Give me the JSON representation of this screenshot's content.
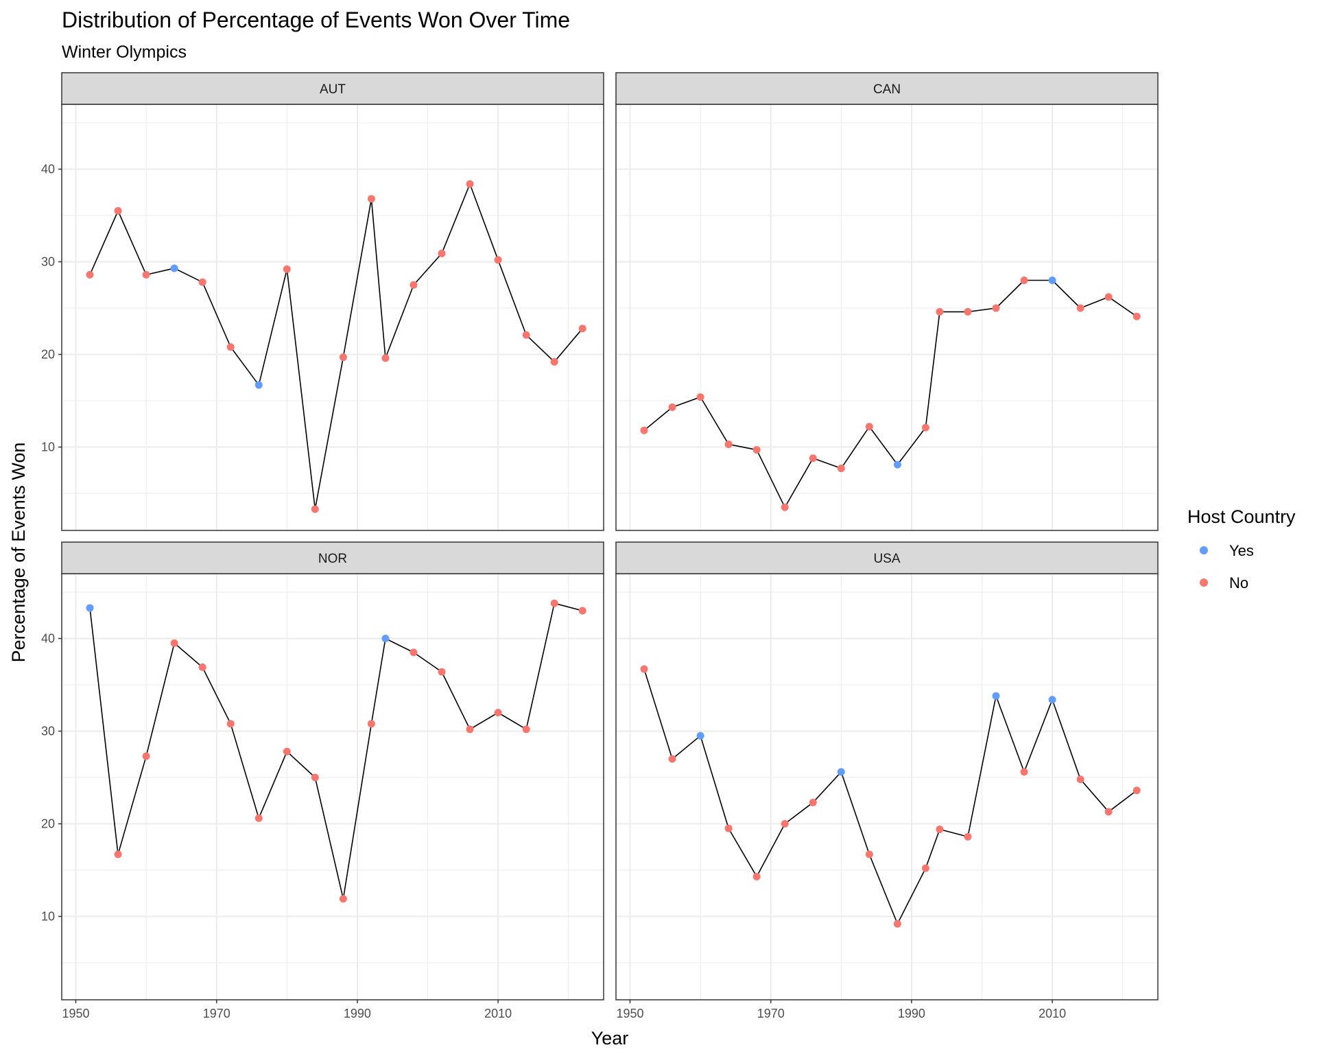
{
  "chart_data": {
    "type": "line",
    "title": "Distribution of Percentage of Events Won Over Time",
    "subtitle": "Winter Olympics",
    "xlabel": "Year",
    "ylabel": "Percentage of Events Won",
    "xlim": [
      1948,
      2025
    ],
    "ylim": [
      1,
      47
    ],
    "x_ticks": [
      1950,
      1970,
      1990,
      2010
    ],
    "y_ticks": [
      10,
      20,
      30,
      40
    ],
    "grid": true,
    "legend": {
      "title": "Host Country",
      "placement": "right",
      "entries": [
        {
          "label": "Yes",
          "color": "#619CFF"
        },
        {
          "label": "No",
          "color": "#F8766D"
        }
      ]
    },
    "colors": {
      "line": "#000000",
      "host_yes": "#619CFF",
      "host_no": "#F8766D",
      "strip_fill": "#D9D9D9",
      "grid": "#EBEBEB"
    },
    "x": [
      1952,
      1956,
      1960,
      1964,
      1968,
      1972,
      1976,
      1980,
      1984,
      1988,
      1992,
      1994,
      1998,
      2002,
      2006,
      2010,
      2014,
      2018,
      2022
    ],
    "facets": [
      {
        "name": "AUT",
        "values": [
          28.6,
          35.5,
          28.6,
          29.3,
          27.8,
          20.8,
          16.7,
          29.2,
          3.3,
          19.7,
          36.8,
          19.6,
          27.5,
          30.9,
          38.4,
          30.2,
          22.1,
          19.2,
          22.8
        ],
        "host": [
          "No",
          "No",
          "No",
          "Yes",
          "No",
          "No",
          "Yes",
          "No",
          "No",
          "No",
          "No",
          "No",
          "No",
          "No",
          "No",
          "No",
          "No",
          "No",
          "No"
        ]
      },
      {
        "name": "CAN",
        "values": [
          11.8,
          14.3,
          15.4,
          10.3,
          9.7,
          3.5,
          8.8,
          7.7,
          12.2,
          8.1,
          12.1,
          24.6,
          24.6,
          25.0,
          28.0,
          28.0,
          25.0,
          26.2,
          24.1
        ],
        "host": [
          "No",
          "No",
          "No",
          "No",
          "No",
          "No",
          "No",
          "No",
          "No",
          "Yes",
          "No",
          "No",
          "No",
          "No",
          "No",
          "Yes",
          "No",
          "No",
          "No"
        ]
      },
      {
        "name": "NOR",
        "values": [
          43.3,
          16.7,
          27.3,
          39.5,
          36.9,
          30.8,
          20.6,
          27.8,
          25.0,
          11.9,
          30.8,
          40.0,
          38.5,
          36.4,
          30.2,
          32.0,
          30.2,
          43.8,
          43.0
        ],
        "host": [
          "Yes",
          "No",
          "No",
          "No",
          "No",
          "No",
          "No",
          "No",
          "No",
          "No",
          "No",
          "Yes",
          "No",
          "No",
          "No",
          "No",
          "No",
          "No",
          "No"
        ]
      },
      {
        "name": "USA",
        "values": [
          36.7,
          27.0,
          29.5,
          19.5,
          14.3,
          20.0,
          22.3,
          25.6,
          16.7,
          9.2,
          15.2,
          19.4,
          18.6,
          33.8,
          25.6,
          33.4,
          24.8,
          21.3,
          23.6
        ],
        "host": [
          "No",
          "No",
          "Yes",
          "No",
          "No",
          "No",
          "No",
          "Yes",
          "No",
          "No",
          "No",
          "No",
          "No",
          "Yes",
          "No",
          "Yes",
          "No",
          "No",
          "No"
        ]
      }
    ]
  }
}
